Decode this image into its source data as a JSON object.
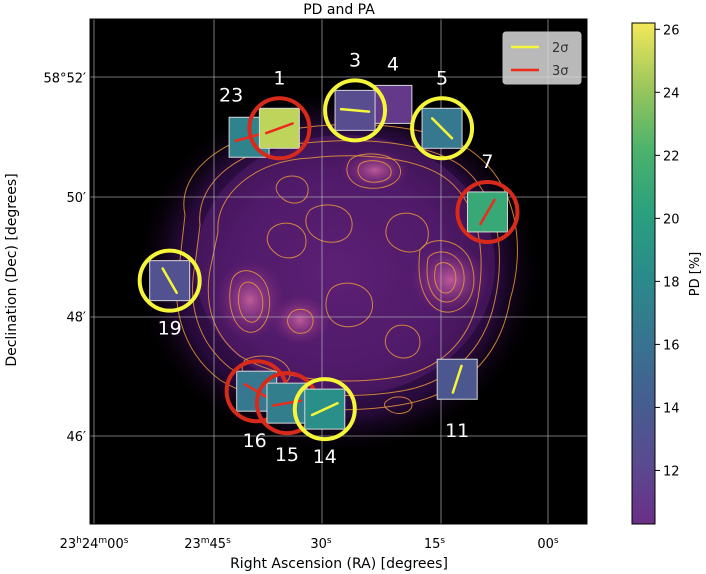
{
  "chart_data": {
    "type": "heatmap",
    "title": "PD and PA",
    "xlabel": "Right Ascension (RA) [degrees]",
    "ylabel": "Declination (Dec) [degrees]",
    "x_ticks": [
      {
        "parts": [
          "23",
          "h",
          "24",
          "m",
          "00",
          "s"
        ]
      },
      {
        "parts": [
          "23",
          "m",
          "45",
          "s"
        ]
      },
      {
        "parts": [
          "30",
          "s"
        ]
      },
      {
        "parts": [
          "15",
          "s"
        ]
      },
      {
        "parts": [
          "00",
          "s"
        ]
      }
    ],
    "y_ticks": [
      "58°52′",
      "50′",
      "48′",
      "46′"
    ],
    "grid": true,
    "colorbar": {
      "label": "PD [%]",
      "range": [
        10.3,
        26.2
      ],
      "ticks": [
        12,
        14,
        16,
        18,
        20,
        22,
        24,
        26
      ],
      "colormap": "viridis"
    },
    "legend": {
      "position": "top-right",
      "entries": [
        {
          "label": "2σ",
          "color": "#f5f53a"
        },
        {
          "label": "3σ",
          "color": "#ee2a1a"
        }
      ]
    },
    "regions": [
      {
        "id": "1",
        "ra_s": 35.5,
        "dec_min": 51.15,
        "pd": 25.0,
        "pa_deg": 20,
        "significance": "3σ"
      },
      {
        "id": "3",
        "ra_s": 25.5,
        "dec_min": 51.45,
        "pd": 12.5,
        "pa_deg": -5,
        "significance": "2σ"
      },
      {
        "id": "4",
        "ra_s": 20.5,
        "dec_min": 51.55,
        "pd": 11.0,
        "pa_deg": null,
        "significance": null
      },
      {
        "id": "5",
        "ra_s": 14.0,
        "dec_min": 51.15,
        "pd": 16.5,
        "pa_deg": -45,
        "significance": "2σ"
      },
      {
        "id": "7",
        "ra_s": 8.0,
        "dec_min": 49.75,
        "pd": 21.0,
        "pa_deg": 60,
        "significance": "3σ"
      },
      {
        "id": "11",
        "ra_s": 12.0,
        "dec_min": 46.95,
        "pd": 13.5,
        "pa_deg": 72,
        "significance": "2σ"
      },
      {
        "id": "14",
        "ra_s": 29.5,
        "dec_min": 46.45,
        "pd": 18.5,
        "pa_deg": 25,
        "significance": "2σ"
      },
      {
        "id": "15",
        "ra_s": 34.5,
        "dec_min": 46.55,
        "pd": 17.0,
        "pa_deg": 10,
        "significance": "3σ"
      },
      {
        "id": "16",
        "ra_s": 38.5,
        "dec_min": 46.75,
        "pd": 16.5,
        "pa_deg": -30,
        "significance": "3σ"
      },
      {
        "id": "19",
        "ra_s": 50.0,
        "dec_min": 48.6,
        "pd": 13.0,
        "pa_deg": -60,
        "significance": "2σ"
      },
      {
        "id": "23",
        "ra_s": 39.5,
        "dec_min": 51.0,
        "pd": 17.5,
        "pa_deg": 15,
        "significance": "3σ"
      }
    ]
  },
  "colors": {
    "background": "#000000",
    "contour": "#e8963a",
    "circle_2sigma": "#f5f53a",
    "circle_3sigma": "#d82a1a",
    "label_text": "#ffffff"
  }
}
